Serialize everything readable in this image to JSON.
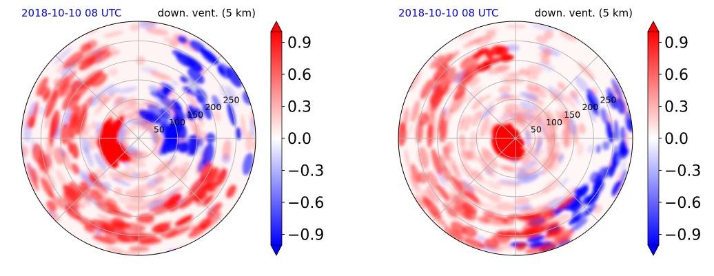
{
  "chart_data": [
    {
      "type": "heatmap",
      "projection": "polar",
      "title_left": "2018-10-10 08 UTC",
      "title_right": "down. vent. (5 km)",
      "radial_ticks": [
        50,
        100,
        150,
        200,
        250
      ],
      "r_max": 300,
      "colorbar": {
        "ticks": [
          "0.9",
          "0.6",
          "0.3",
          "0.0",
          "−0.3",
          "−0.6",
          "−0.9"
        ],
        "tick_values": [
          0.9,
          0.6,
          0.3,
          0.0,
          -0.3,
          -0.6,
          -0.9
        ],
        "range": [
          -1.0,
          1.0
        ],
        "extend": "both",
        "colormap": "bwr"
      },
      "colors": {
        "positive": "#ff0000",
        "negative": "#0000ff",
        "neutral": "#ffffff",
        "grid": "#b0b0b0",
        "title_date": "#0000ff"
      }
    },
    {
      "type": "heatmap",
      "projection": "polar",
      "title_left": "2018-10-10 08 UTC",
      "title_right": "down. vent. (5 km)",
      "radial_ticks": [
        50,
        100,
        150,
        200,
        250
      ],
      "r_max": 300,
      "colorbar": {
        "ticks": [
          "0.9",
          "0.6",
          "0.3",
          "0.0",
          "−0.3",
          "−0.6",
          "−0.9"
        ],
        "tick_values": [
          0.9,
          0.6,
          0.3,
          0.0,
          -0.3,
          -0.6,
          -0.9
        ],
        "range": [
          -1.0,
          1.0
        ],
        "extend": "both",
        "colormap": "bwr"
      },
      "colors": {
        "positive": "#ff0000",
        "negative": "#0000ff",
        "neutral": "#ffffff",
        "grid": "#b0b0b0",
        "title_date": "#0000ff"
      }
    }
  ]
}
